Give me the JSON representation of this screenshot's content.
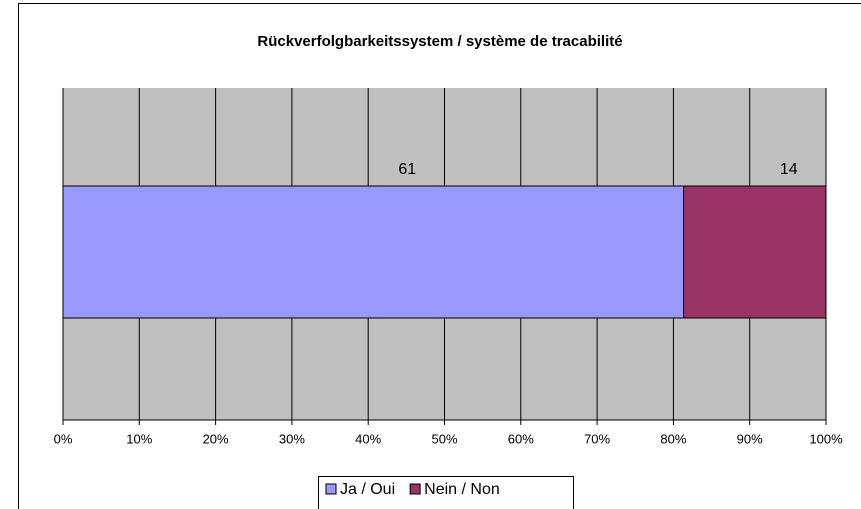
{
  "chart_data": {
    "type": "bar",
    "orientation": "horizontal",
    "stacked": "percent",
    "title": "Rückverfolgbarkeitssystem / système de tracabilité",
    "categories": [
      null
    ],
    "series": [
      {
        "name": "Ja / Oui",
        "color": "#9999ff",
        "values": [
          61
        ]
      },
      {
        "name": "Nein / Non",
        "color": "#993366",
        "values": [
          14
        ]
      }
    ],
    "xlim": [
      0,
      100
    ],
    "xticks": [
      {
        "value": 0,
        "label": "0%"
      },
      {
        "value": 10,
        "label": "10%"
      },
      {
        "value": 20,
        "label": "20%"
      },
      {
        "value": 30,
        "label": "30%"
      },
      {
        "value": 40,
        "label": "40%"
      },
      {
        "value": 50,
        "label": "50%"
      },
      {
        "value": 60,
        "label": "60%"
      },
      {
        "value": 70,
        "label": "70%"
      },
      {
        "value": 80,
        "label": "80%"
      },
      {
        "value": 90,
        "label": "90%"
      },
      {
        "value": 100,
        "label": "100%"
      }
    ],
    "grid": true,
    "legend": "bottom"
  }
}
